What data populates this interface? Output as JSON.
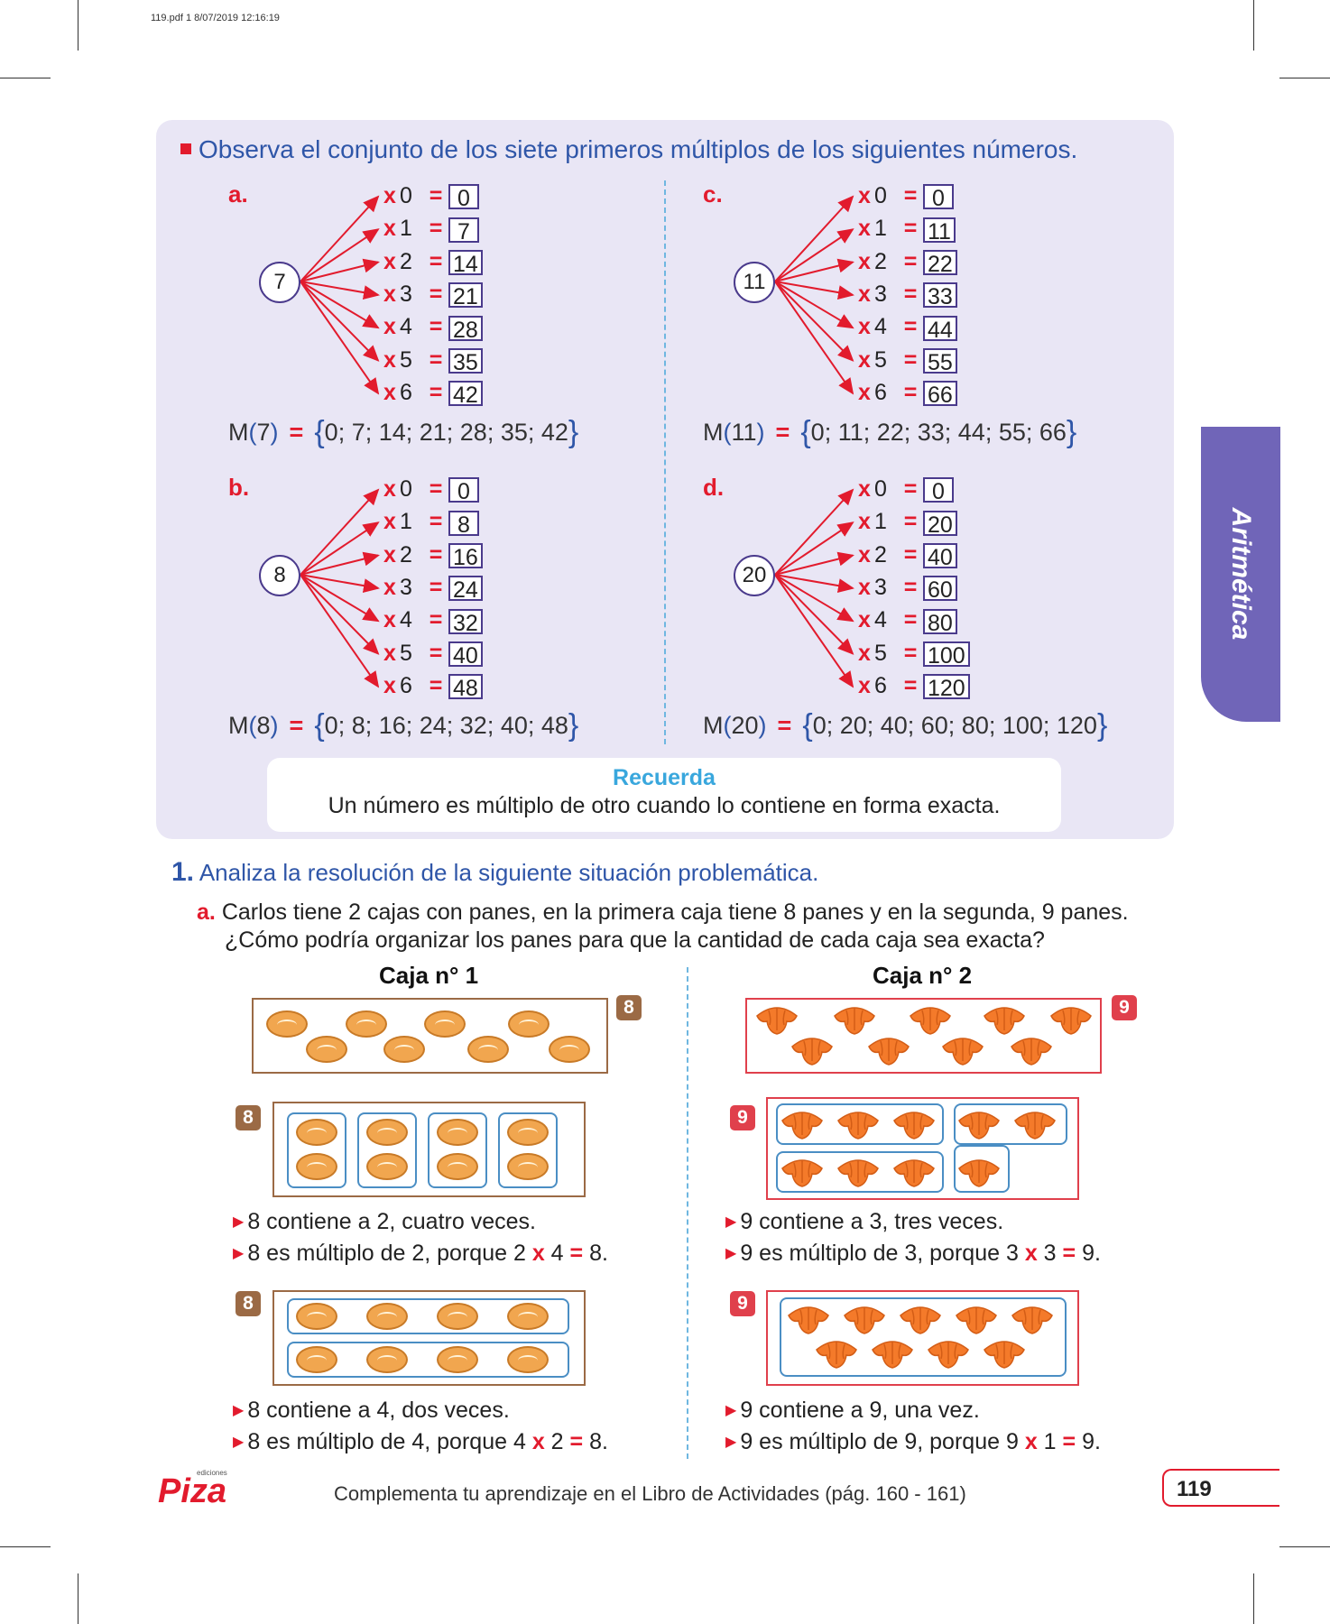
{
  "header": {
    "file_meta": "119.pdf   1   8/07/2019   12:16:19"
  },
  "instruction": "Observa el conjunto de los siete primeros múltiplos de los siguientes números.",
  "blocks": [
    {
      "letter": "a.",
      "base": "7",
      "muls": [
        "0",
        "1",
        "2",
        "3",
        "4",
        "5",
        "6"
      ],
      "results": [
        "0",
        "7",
        "14",
        "21",
        "28",
        "35",
        "42"
      ],
      "set_name": "M",
      "set_arg": "7",
      "set_values": "0; 7; 14; 21; 28; 35; 42"
    },
    {
      "letter": "b.",
      "base": "8",
      "muls": [
        "0",
        "1",
        "2",
        "3",
        "4",
        "5",
        "6"
      ],
      "results": [
        "0",
        "8",
        "16",
        "24",
        "32",
        "40",
        "48"
      ],
      "set_name": "M",
      "set_arg": "8",
      "set_values": "0; 8; 16; 24; 32; 40; 48"
    },
    {
      "letter": "c.",
      "base": "11",
      "muls": [
        "0",
        "1",
        "2",
        "3",
        "4",
        "5",
        "6"
      ],
      "results": [
        "0",
        "11",
        "22",
        "33",
        "44",
        "55",
        "66"
      ],
      "set_name": "M",
      "set_arg": "11",
      "set_values": "0; 11; 22; 33; 44; 55; 66"
    },
    {
      "letter": "d.",
      "base": "20",
      "muls": [
        "0",
        "1",
        "2",
        "3",
        "4",
        "5",
        "6"
      ],
      "results": [
        "0",
        "20",
        "40",
        "60",
        "80",
        "100",
        "120"
      ],
      "set_name": "M",
      "set_arg": "20",
      "set_values": "0; 20; 40; 60; 80; 100; 120"
    }
  ],
  "symbols": {
    "times": "x",
    "equals": "=",
    "open_brace": "{",
    "close_brace": "}",
    "open_paren": "(",
    "close_paren": ")"
  },
  "recuerda": {
    "title": "Recuerda",
    "text": "Un número es múltiplo de otro cuando lo contiene en forma exacta."
  },
  "side_tab": "Aritmética",
  "problem": {
    "number": "1.",
    "title": "Analiza la resolución de la siguiente situación problemática.",
    "letter": "a.",
    "line1": "Carlos tiene 2 cajas con panes, en la primera caja tiene 8 panes y en la segunda, 9 panes.",
    "line2": "¿Cómo podría organizar los panes para que la cantidad de cada caja sea exacta?"
  },
  "caja1": {
    "title": "Caja n° 1",
    "tag": "8",
    "icon": "bread-icon",
    "color": "#9b6a45",
    "bullets1": [
      "8 contiene a 2, cuatro veces.",
      "8 es múltiplo de 2, porque 2",
      "4",
      "8."
    ],
    "bullets2": [
      "8 contiene a 4, dos veces.",
      "8 es múltiplo de 4, porque 4",
      "2",
      "8."
    ]
  },
  "caja2": {
    "title": "Caja n° 2",
    "tag": "9",
    "icon": "croissant-icon",
    "color": "#e0404c",
    "bullets1": [
      "9 contiene a 3, tres veces.",
      "9 es múltiplo de 3, porque 3",
      "3",
      "9."
    ],
    "bullets2": [
      "9 contiene a 9, una vez.",
      "9 es múltiplo de 9, porque 9",
      "1",
      "9."
    ]
  },
  "footer": {
    "logo": "Piza",
    "logo_small": "ediciones",
    "text": "Complementa tu aprendizaje en el Libro de Actividades (pág. 160 - 161)",
    "page": "119"
  }
}
